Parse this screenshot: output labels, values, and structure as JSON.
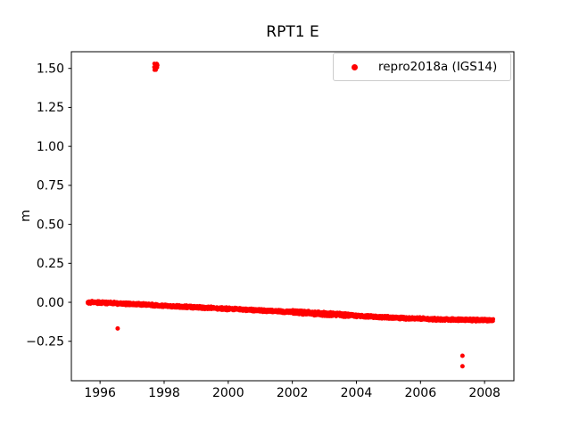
{
  "chart_data": {
    "type": "scatter",
    "title": "RPT1 E",
    "xlabel": "",
    "ylabel": "m",
    "xlim": [
      1995.105,
      2008.915
    ],
    "ylim": [
      -0.503,
      1.607
    ],
    "xtick_values": [
      1996,
      1998,
      2000,
      2002,
      2004,
      2006,
      2008
    ],
    "xtick_labels": [
      "1996",
      "1998",
      "2000",
      "2002",
      "2004",
      "2006",
      "2008"
    ],
    "ytick_values": [
      -0.25,
      0.0,
      0.25,
      0.5,
      0.75,
      1.0,
      1.25,
      1.5
    ],
    "ytick_labels": [
      "−0.25",
      "0.00",
      "0.25",
      "0.50",
      "0.75",
      "1.00",
      "1.25",
      "1.50"
    ],
    "grid": false,
    "legend_position": "upper right",
    "series": [
      {
        "name": "repro2018a (IGS14)",
        "color": "#ff0000",
        "marker": "dot",
        "marker_radius_px": 2.2,
        "n_points": 2600,
        "x_range": [
          1995.61,
          2008.27
        ],
        "band_halfwidth": 0.009,
        "rough_zone": {
          "x_range": [
            2002.0,
            2003.8
          ],
          "extra_halfwidth": 0.004
        },
        "trend_anchors": [
          [
            1995.61,
            0.0
          ],
          [
            1996.0,
            -0.002
          ],
          [
            1996.5,
            -0.006
          ],
          [
            1997.0,
            -0.012
          ],
          [
            1997.5,
            -0.016
          ],
          [
            1998.0,
            -0.022
          ],
          [
            1998.5,
            -0.028
          ],
          [
            1999.0,
            -0.032
          ],
          [
            2000.0,
            -0.042
          ],
          [
            2001.0,
            -0.052
          ],
          [
            2001.5,
            -0.058
          ],
          [
            2002.0,
            -0.062
          ],
          [
            2002.5,
            -0.068
          ],
          [
            2003.0,
            -0.075
          ],
          [
            2004.0,
            -0.086
          ],
          [
            2004.9,
            -0.096
          ],
          [
            2005.5,
            -0.102
          ],
          [
            2006.5,
            -0.109
          ],
          [
            2007.5,
            -0.112
          ],
          [
            2008.27,
            -0.116
          ]
        ],
        "outliers": [
          [
            1996.55,
            -0.168
          ],
          [
            2007.31,
            -0.343
          ],
          [
            2007.31,
            -0.41
          ]
        ],
        "outlier_cluster": {
          "x_range": [
            1997.68,
            1997.8
          ],
          "y_range": [
            1.489,
            1.531
          ],
          "n": 14
        }
      }
    ],
    "axis_color": "#000000",
    "legend_border_color": "#cccccc"
  }
}
